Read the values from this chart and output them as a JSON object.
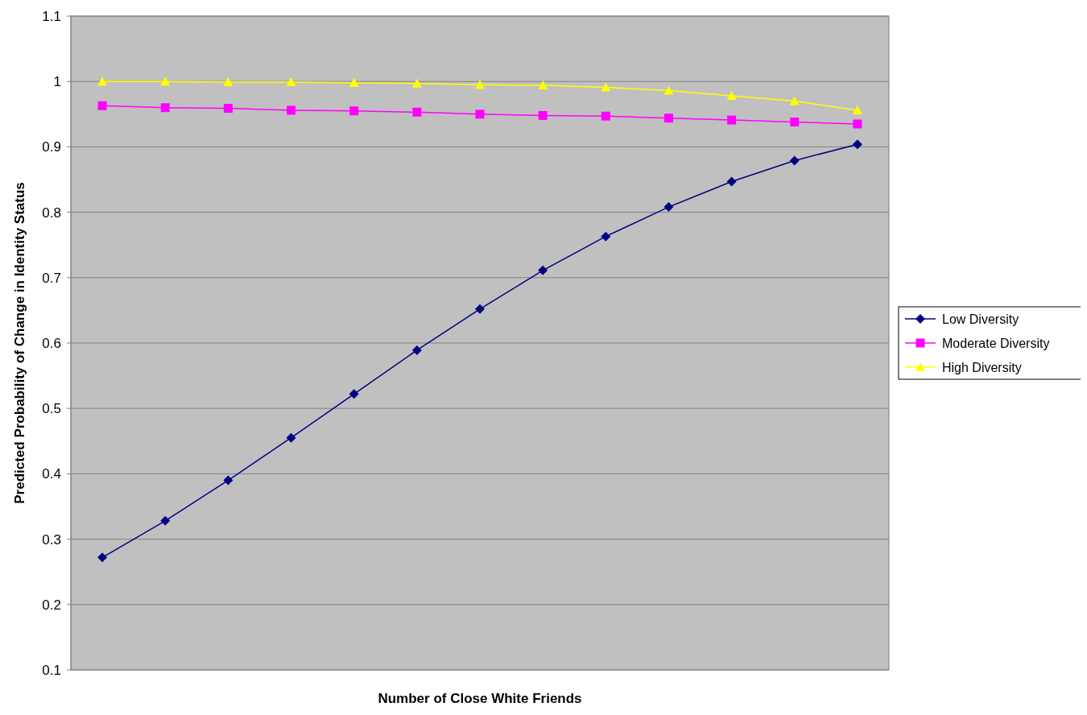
{
  "chart_data": {
    "type": "line",
    "xlabel": "Number of Close White Friends",
    "ylabel": "Predicted Probability of Change in Identity Status",
    "categories": [
      null,
      null,
      null,
      null,
      null,
      null,
      null,
      null,
      null,
      null,
      null,
      null,
      null
    ],
    "ylim": [
      0.1,
      1.1
    ],
    "yticks": [
      0.1,
      0.2,
      0.3,
      0.4,
      0.5,
      0.6,
      0.7,
      0.8,
      0.9,
      1,
      1.1
    ],
    "grid": "y",
    "legend": "right",
    "series": [
      {
        "name": "Low Diversity",
        "color": "#000080",
        "marker": "diamond",
        "values": [
          0.272,
          0.328,
          0.39,
          0.455,
          0.522,
          0.589,
          0.652,
          0.711,
          0.763,
          0.808,
          0.847,
          0.879,
          0.904
        ]
      },
      {
        "name": "Moderate Diversity",
        "color": "#ff00ff",
        "marker": "square",
        "values": [
          0.963,
          0.96,
          0.959,
          0.956,
          0.955,
          0.953,
          0.95,
          0.948,
          0.947,
          0.944,
          0.941,
          0.938,
          0.935
        ]
      },
      {
        "name": "High Diversity",
        "color": "#ffff00",
        "marker": "triangle",
        "values": [
          1,
          1,
          0.999,
          0.999,
          0.998,
          0.997,
          0.995,
          0.994,
          0.991,
          0.986,
          0.978,
          0.97,
          0.956
        ]
      }
    ]
  }
}
